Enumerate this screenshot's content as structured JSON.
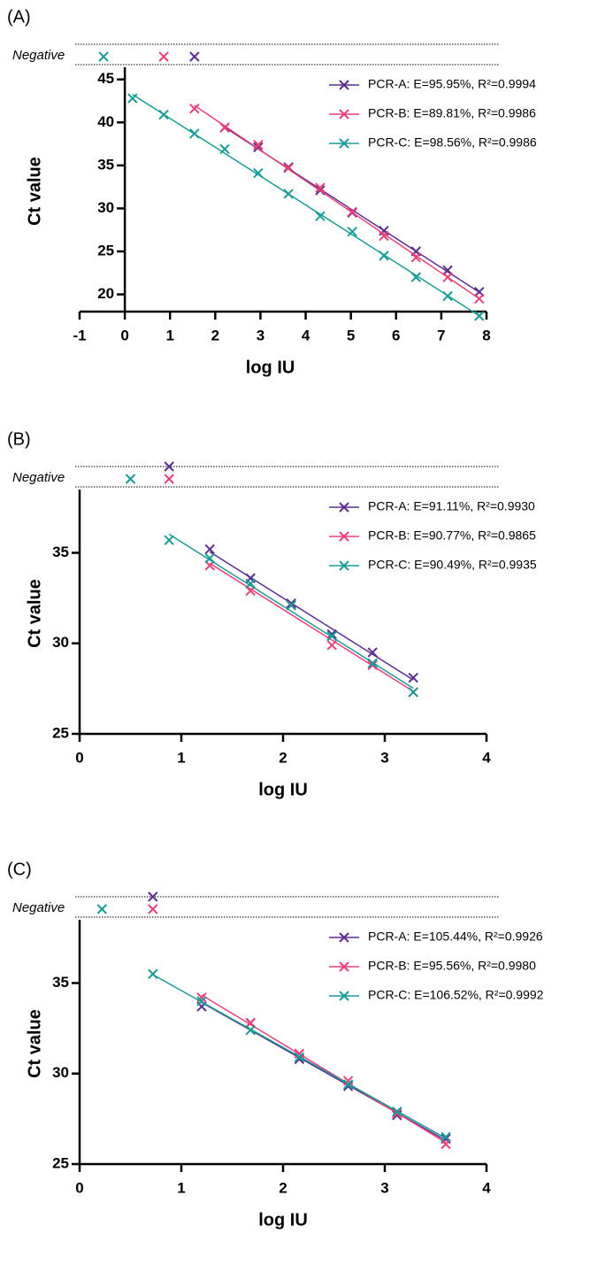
{
  "chart_data": [
    {
      "type": "scatter",
      "panel_label": "(A)",
      "negative_label": "Negative",
      "x_label": "log IU",
      "y_label": "Ct value",
      "xlim": [
        -1,
        8
      ],
      "xticks": [
        -1,
        0,
        1,
        2,
        3,
        4,
        5,
        6,
        7,
        8
      ],
      "ylim": [
        18,
        46
      ],
      "yticks": [
        20,
        25,
        30,
        35,
        40,
        45
      ],
      "legend": "upper right",
      "series": [
        {
          "name": "PCR-A: E=95.95%, R²=0.9994",
          "color": "#5b2d91",
          "negative_x": 1.54,
          "x": [
            2.21,
            2.95,
            3.62,
            4.32,
            5.03,
            5.73,
            6.44,
            7.14,
            7.84
          ],
          "values": [
            39.4,
            37.1,
            34.8,
            32.1,
            29.5,
            27.4,
            25.0,
            22.8,
            20.3
          ]
        },
        {
          "name": "PCR-B: E=89.81%, R²=0.9986",
          "color": "#e8407a",
          "negative_x": 0.86,
          "x": [
            1.54,
            2.21,
            2.95,
            3.62,
            4.32,
            5.03,
            5.73,
            6.44,
            7.14,
            7.84
          ],
          "values": [
            41.6,
            39.4,
            37.4,
            34.7,
            32.4,
            29.6,
            26.8,
            24.3,
            22.0,
            19.5
          ]
        },
        {
          "name": "PCR-C: E=98.56%, R²=0.9986",
          "color": "#1a9b95",
          "negative_x": -0.47,
          "x": [
            0.17,
            0.86,
            1.54,
            2.21,
            2.95,
            3.62,
            4.32,
            5.03,
            5.73,
            6.44,
            7.14,
            7.84
          ],
          "values": [
            42.8,
            40.9,
            38.7,
            36.9,
            34.1,
            31.7,
            29.1,
            27.3,
            24.5,
            22.0,
            19.8,
            17.5
          ]
        }
      ]
    },
    {
      "type": "scatter",
      "panel_label": "(B)",
      "negative_label": "Negative",
      "x_label": "log IU",
      "y_label": "Ct value",
      "xlim": [
        0,
        4
      ],
      "xticks": [
        0,
        1,
        2,
        3,
        4
      ],
      "ylim": [
        25,
        38.3
      ],
      "yticks": [
        25,
        30,
        35
      ],
      "legend": "upper right",
      "series": [
        {
          "name": "PCR-A: E=91.11%, R²=0.9930",
          "color": "#5b2d91",
          "negative_x": 0.88,
          "x": [
            1.28,
            1.68,
            2.08,
            2.48,
            2.88,
            3.28
          ],
          "values": [
            35.2,
            33.6,
            32.2,
            30.5,
            29.5,
            28.1
          ]
        },
        {
          "name": "PCR-B: E=90.77%, R²=0.9865",
          "color": "#e8407a",
          "negative_x": 0.88,
          "x": [
            1.28,
            1.68,
            2.08,
            2.48,
            2.88,
            3.28
          ],
          "values": [
            34.3,
            32.9,
            32.1,
            29.9,
            28.8,
            27.3
          ]
        },
        {
          "name": "PCR-C: E=90.49%, R²=0.9935",
          "color": "#1a9b95",
          "negative_x": 0.5,
          "x": [
            0.88,
            1.28,
            1.68,
            2.08,
            2.48,
            2.88,
            3.28
          ],
          "values": [
            35.7,
            34.7,
            33.3,
            32.1,
            30.4,
            28.9,
            27.3
          ]
        }
      ]
    },
    {
      "type": "scatter",
      "panel_label": "(C)",
      "negative_label": "Negative",
      "x_label": "log IU",
      "y_label": "Ct value",
      "xlim": [
        0,
        4
      ],
      "xticks": [
        0,
        1,
        2,
        3,
        4
      ],
      "ylim": [
        25,
        38.3
      ],
      "yticks": [
        25,
        30,
        35
      ],
      "legend": "upper right",
      "series": [
        {
          "name": "PCR-A: E=105.44%, R²=0.9926",
          "color": "#5b2d91",
          "negative_x": 0.72,
          "x": [
            1.2,
            1.68,
            2.16,
            2.64,
            3.12,
            3.6
          ],
          "values": [
            33.7,
            32.8,
            30.8,
            29.3,
            27.7,
            26.4
          ]
        },
        {
          "name": "PCR-B: E=95.56%, R²=0.9980",
          "color": "#e8407a",
          "negative_x": 0.72,
          "x": [
            1.2,
            1.68,
            2.16,
            2.64,
            3.12,
            3.6
          ],
          "values": [
            34.2,
            32.8,
            31.1,
            29.6,
            27.8,
            26.1
          ]
        },
        {
          "name": "PCR-C: E=106.52%, R²=0.9992",
          "color": "#1a9b95",
          "negative_x": 0.22,
          "x": [
            0.72,
            1.2,
            1.68,
            2.16,
            2.64,
            3.12,
            3.6
          ],
          "values": [
            35.5,
            34.0,
            32.4,
            30.9,
            29.4,
            27.9,
            26.5
          ]
        }
      ]
    }
  ]
}
